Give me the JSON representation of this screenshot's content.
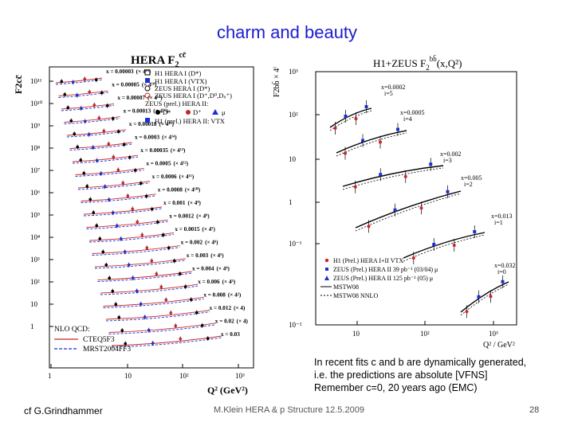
{
  "slide": {
    "title": "charm and beauty",
    "note_lines": [
      "In recent fits c and b are dynamically generated,",
      "i.e. the predictions are absolute [VFNS]",
      "Remember c=0, 20 years ago (EMC)"
    ],
    "credit": "cf G.Grindhammer",
    "footer": "M.Klein HERA & p Structure 12.5.2009",
    "page_number": "28"
  },
  "left_figure": {
    "title": "HERA F",
    "title_sub": "2",
    "title_sup": "cc̄",
    "ylabel": "F2cc̄",
    "xlabel": "Q² (GeV²)",
    "x_ticks": [
      "1",
      "10",
      "10²",
      "10³"
    ],
    "y_ticks": [
      "1",
      "10",
      "10²",
      "10³",
      "10⁴",
      "10⁵",
      "10⁶",
      "10⁷",
      "10⁸",
      "10⁹",
      "10¹⁰",
      "10¹¹"
    ],
    "legend_a": [
      "H1 HERA I (D*)",
      "H1 HERA I (VTX)",
      "ZEUS HERA I (D*)",
      "ZEUS HERA I (D⁺,D⁰,Dₛ⁺)"
    ],
    "legend_b_head": "ZEUS (prel.) HERA II:",
    "legend_b": [
      "D*",
      "D⁺",
      "μ"
    ],
    "legend_c": "H1 (prel.) HERA II: VTX",
    "nlo_title": "NLO QCD:",
    "nlo_items": [
      "CTEQ5F3",
      "MRST2004FF3"
    ],
    "bins": [
      {
        "x": "x = 0.00003",
        "scale": "(× 4¹⁹)"
      },
      {
        "x": "x = 0.00005",
        "scale": "(× 4¹⁸)"
      },
      {
        "x": "x = 0.00007",
        "scale": "(× 4¹⁷)"
      },
      {
        "x": "x = 0.00013",
        "scale": "(× 4¹⁶)"
      },
      {
        "x": "x = 0.00018",
        "scale": "(× 4¹⁵)"
      },
      {
        "x": "x = 0.0003",
        "scale": "(× 4¹⁴)"
      },
      {
        "x": "x = 0.00035",
        "scale": "(× 4¹³)"
      },
      {
        "x": "x = 0.0005",
        "scale": "(× 4¹²)"
      },
      {
        "x": "x = 0.0006",
        "scale": "(× 4¹¹)"
      },
      {
        "x": "x = 0.0008",
        "scale": "(× 4¹⁰)"
      },
      {
        "x": "x = 0.001",
        "scale": "(× 4⁹)"
      },
      {
        "x": "x = 0.0012",
        "scale": "(× 4⁸)"
      },
      {
        "x": "x = 0.0015",
        "scale": "(× 4⁷)"
      },
      {
        "x": "x = 0.002",
        "scale": "(× 4⁶)"
      },
      {
        "x": "x = 0.003",
        "scale": "(× 4⁵)"
      },
      {
        "x": "x = 0.004",
        "scale": "(× 4⁴)"
      },
      {
        "x": "x = 0.006",
        "scale": "(× 4³)"
      },
      {
        "x": "x = 0.008",
        "scale": "(× 4²)"
      },
      {
        "x": "x = 0.012",
        "scale": "(× 4)"
      },
      {
        "x": "x = 0.02",
        "scale": "(× 4)"
      },
      {
        "x": "x = 0.03",
        "scale": ""
      }
    ]
  },
  "right_figure": {
    "title": "H1+ZEUS F",
    "title_sub": "2",
    "title_sup": "bb̄",
    "title_arg": "(x,Q²)",
    "ylabel": "F2bb̄ × 4ⁱ",
    "xlabel": "Q² / GeV²",
    "x_ticks": [
      "10",
      "10²",
      "10³"
    ],
    "y_ticks": [
      "10⁻²",
      "10⁻¹",
      "1",
      "10",
      "10²",
      "10³"
    ],
    "bins": [
      {
        "x": "x=0.0002",
        "i": "i=5"
      },
      {
        "x": "x=0.0005",
        "i": "i=4"
      },
      {
        "x": "x=0.002",
        "i": "i=3"
      },
      {
        "x": "x=0.005",
        "i": "i=2"
      },
      {
        "x": "x=0.013",
        "i": "i=1"
      },
      {
        "x": "x=0.032",
        "i": "i=0"
      }
    ],
    "legend": [
      "H1 (Prel.) HERA I+II VTX",
      "ZEUS (Prel.) HERA II 39 pb⁻¹ (03/04) μ",
      "ZEUS (Prel.) HERA II 125 pb⁻¹ (05) μ",
      "MSTW08",
      "MSTW08 NNLO"
    ]
  }
}
